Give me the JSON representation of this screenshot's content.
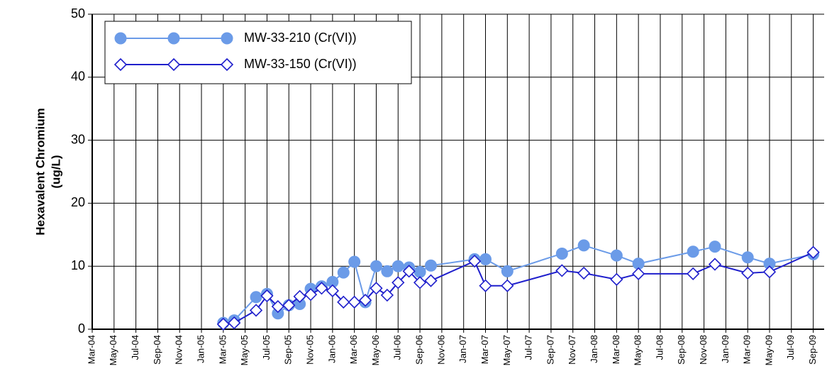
{
  "chart_data": {
    "type": "line",
    "ylabel": [
      "Hexavalent Chromium",
      "(ug/L)"
    ],
    "xlim": [
      "2004-03",
      "2009-10"
    ],
    "xticks": [
      {
        "value": "2004-03",
        "label": "Mar-04"
      },
      {
        "value": "2004-05",
        "label": "May-04"
      },
      {
        "value": "2004-07",
        "label": "Jul-04"
      },
      {
        "value": "2004-09",
        "label": "Sep-04"
      },
      {
        "value": "2004-11",
        "label": "Nov-04"
      },
      {
        "value": "2005-01",
        "label": "Jan-05"
      },
      {
        "value": "2005-03",
        "label": "Mar-05"
      },
      {
        "value": "2005-05",
        "label": "May-05"
      },
      {
        "value": "2005-07",
        "label": "Jul-05"
      },
      {
        "value": "2005-09",
        "label": "Sep-05"
      },
      {
        "value": "2005-11",
        "label": "Nov-05"
      },
      {
        "value": "2006-01",
        "label": "Jan-06"
      },
      {
        "value": "2006-03",
        "label": "Mar-06"
      },
      {
        "value": "2006-05",
        "label": "May-06"
      },
      {
        "value": "2006-07",
        "label": "Jul-06"
      },
      {
        "value": "2006-09",
        "label": "Sep-06"
      },
      {
        "value": "2006-11",
        "label": "Nov-06"
      },
      {
        "value": "2007-01",
        "label": "Jan-07"
      },
      {
        "value": "2007-03",
        "label": "Mar-07"
      },
      {
        "value": "2007-05",
        "label": "May-07"
      },
      {
        "value": "2007-07",
        "label": "Jul-07"
      },
      {
        "value": "2007-09",
        "label": "Sep-07"
      },
      {
        "value": "2007-11",
        "label": "Nov-07"
      },
      {
        "value": "2008-01",
        "label": "Jan-08"
      },
      {
        "value": "2008-03",
        "label": "Mar-08"
      },
      {
        "value": "2008-05",
        "label": "May-08"
      },
      {
        "value": "2008-07",
        "label": "Jul-08"
      },
      {
        "value": "2008-09",
        "label": "Sep-08"
      },
      {
        "value": "2008-11",
        "label": "Nov-08"
      },
      {
        "value": "2009-01",
        "label": "Jan-09"
      },
      {
        "value": "2009-03",
        "label": "Mar-09"
      },
      {
        "value": "2009-05",
        "label": "May-09"
      },
      {
        "value": "2009-07",
        "label": "Jul-09"
      },
      {
        "value": "2009-09",
        "label": "Sep-09"
      }
    ],
    "ylim": [
      0,
      50
    ],
    "yticks": [
      0,
      10,
      20,
      30,
      40,
      50
    ],
    "grid": true,
    "legend": "upper left",
    "x": [
      "2005-03",
      "2005-04",
      "2005-06",
      "2005-07",
      "2005-08",
      "2005-09",
      "2005-10",
      "2005-11",
      "2005-12",
      "2006-01",
      "2006-02",
      "2006-03",
      "2006-04",
      "2006-05",
      "2006-06",
      "2006-07",
      "2006-08",
      "2006-09",
      "2006-10",
      "2007-02",
      "2007-03",
      "2007-05",
      "2007-10",
      "2007-12",
      "2008-03",
      "2008-05",
      "2008-10",
      "2008-12",
      "2009-03",
      "2009-05",
      "2009-09"
    ],
    "series": [
      {
        "name": "MW-33-210 (Cr(VI))",
        "color": "#6b9be8",
        "marker": "circle",
        "values": [
          1.0,
          1.4,
          5.1,
          5.6,
          2.5,
          3.8,
          4.0,
          6.4,
          6.8,
          7.5,
          9.0,
          10.7,
          4.3,
          10.0,
          9.2,
          10.0,
          9.8,
          9.1,
          10.1,
          11.1,
          11.1,
          9.2,
          12.0,
          13.3,
          11.7,
          10.4,
          12.3,
          13.1,
          11.4,
          10.4,
          11.9
        ]
      },
      {
        "name": "MW-33-150 (Cr(VI))",
        "color": "#1f1fcc",
        "marker": "diamond",
        "values": [
          0.8,
          1.0,
          3.0,
          5.3,
          3.6,
          3.8,
          5.2,
          5.5,
          6.5,
          6.1,
          4.3,
          4.3,
          4.6,
          6.5,
          5.4,
          7.4,
          9.2,
          7.4,
          7.7,
          10.8,
          6.9,
          6.9,
          9.3,
          8.9,
          7.9,
          8.8,
          8.8,
          10.3,
          8.9,
          9.1,
          12.2
        ]
      }
    ]
  }
}
